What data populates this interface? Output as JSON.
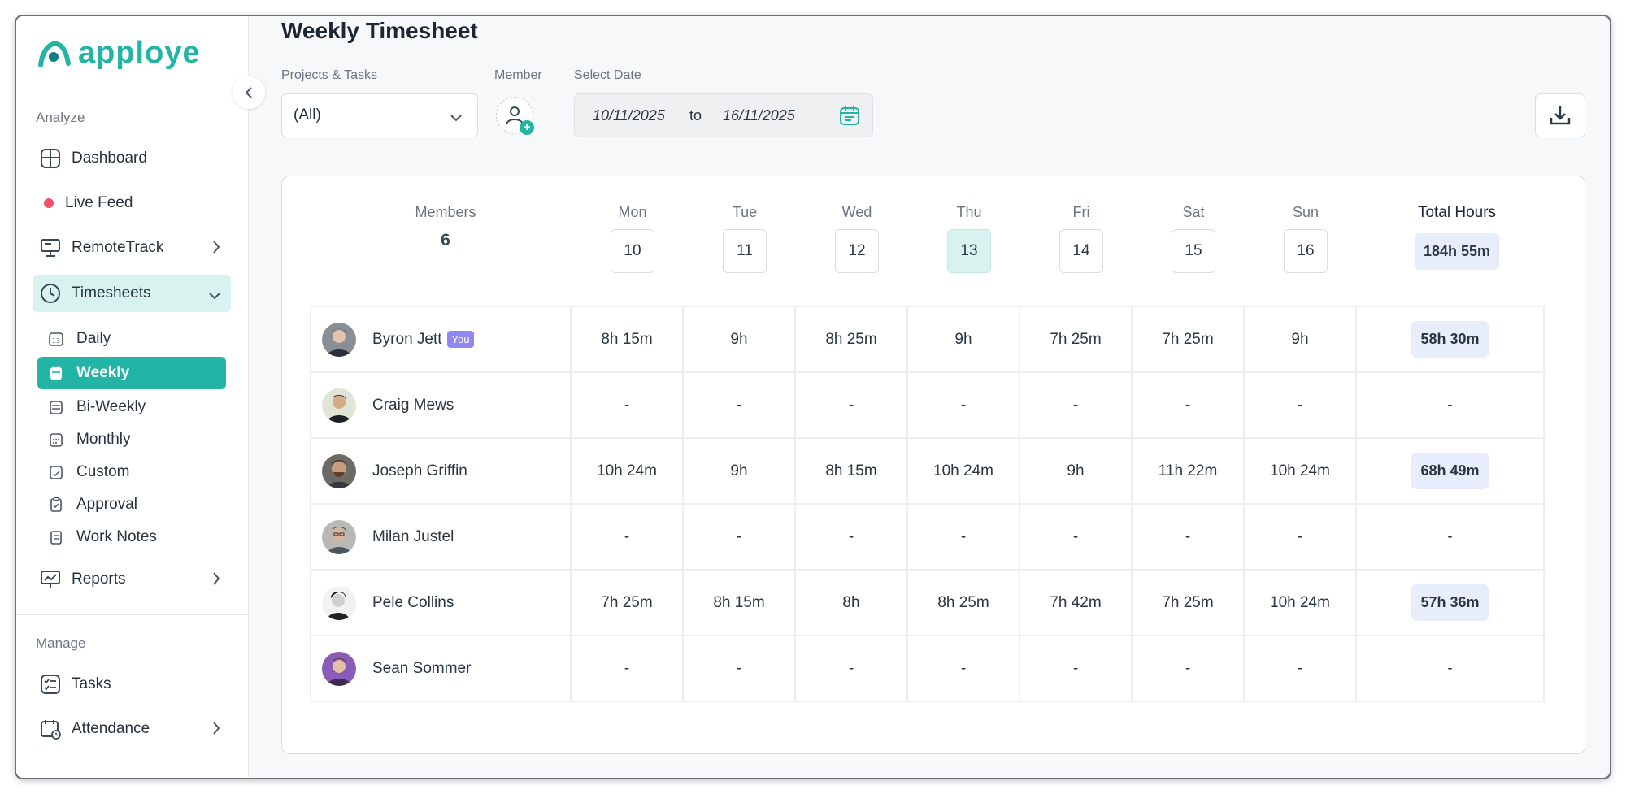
{
  "brand": {
    "name": "apploye",
    "accent": "#22b5a5"
  },
  "sidebar": {
    "analyze_label": "Analyze",
    "manage_label": "Manage",
    "items": {
      "dashboard": "Dashboard",
      "live_feed": "Live Feed",
      "remote_track": "RemoteTrack",
      "timesheets": "Timesheets",
      "reports": "Reports",
      "tasks": "Tasks",
      "attendance": "Attendance"
    },
    "timesheet_sub": {
      "daily": "Daily",
      "weekly": "Weekly",
      "bi_weekly": "Bi-Weekly",
      "monthly": "Monthly",
      "custom": "Custom",
      "approval": "Approval",
      "work_notes": "Work Notes"
    },
    "daily_icon_text": "13"
  },
  "header": {
    "title": "Weekly Timesheet",
    "projects_label": "Projects & Tasks",
    "projects_value": "(All)",
    "member_label": "Member",
    "date_label": "Select Date",
    "date_from": "10/11/2025",
    "date_to_word": "to",
    "date_to": "16/11/2025"
  },
  "table": {
    "members_label": "Members",
    "members_count": "6",
    "total_label": "Total Hours",
    "total_value": "184h 55m",
    "you_badge": "You",
    "days": [
      {
        "name": "Mon",
        "date": "10"
      },
      {
        "name": "Tue",
        "date": "11"
      },
      {
        "name": "Wed",
        "date": "12"
      },
      {
        "name": "Thu",
        "date": "13"
      },
      {
        "name": "Fri",
        "date": "14"
      },
      {
        "name": "Sat",
        "date": "15"
      },
      {
        "name": "Sun",
        "date": "16"
      }
    ],
    "rows": [
      {
        "name": "Byron Jett",
        "hours": [
          "8h 15m",
          "9h",
          "8h 25m",
          "9h",
          "7h 25m",
          "7h 25m",
          "9h"
        ],
        "total": "58h 30m"
      },
      {
        "name": "Craig Mews",
        "hours": [
          "-",
          "-",
          "-",
          "-",
          "-",
          "-",
          "-"
        ],
        "total": "-"
      },
      {
        "name": "Joseph Griffin",
        "hours": [
          "10h 24m",
          "9h",
          "8h 15m",
          "10h 24m",
          "9h",
          "11h 22m",
          "10h 24m"
        ],
        "total": "68h 49m"
      },
      {
        "name": "Milan Justel",
        "hours": [
          "-",
          "-",
          "-",
          "-",
          "-",
          "-",
          "-"
        ],
        "total": "-"
      },
      {
        "name": "Pele Collins",
        "hours": [
          "7h 25m",
          "8h 15m",
          "8h",
          "8h 25m",
          "7h 42m",
          "7h 25m",
          "10h 24m"
        ],
        "total": "57h 36m"
      },
      {
        "name": "Sean Sommer",
        "hours": [
          "-",
          "-",
          "-",
          "-",
          "-",
          "-",
          "-"
        ],
        "total": "-"
      }
    ]
  }
}
